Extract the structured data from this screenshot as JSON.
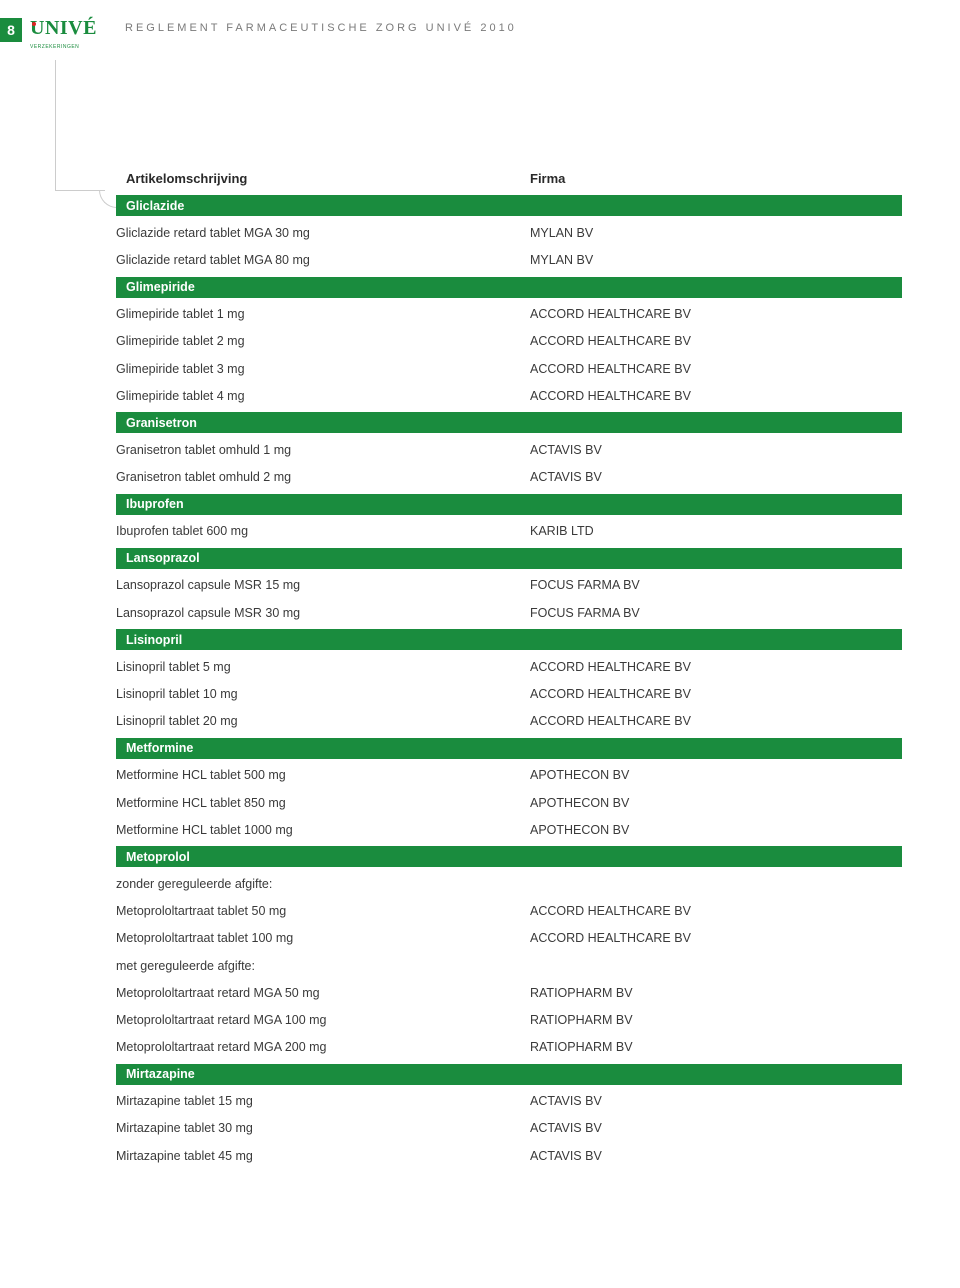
{
  "page_number": "8",
  "logo": {
    "main": "UNIVÉ",
    "sub": "VERZEKERINGEN"
  },
  "header_title": "REGLEMENT FARMACEUTISCHE ZORG UNIVÉ 2010",
  "colors": {
    "brand_green": "#1a8c3e",
    "text": "#3a3a3a",
    "rule": "#cccccc",
    "grey": "#7a7a7a"
  },
  "table": {
    "columns": [
      "Artikelomschrijving",
      "Firma"
    ],
    "rows": [
      {
        "type": "section",
        "label": "Gliclazide"
      },
      {
        "c1": "Gliclazide retard tablet MGA 30 mg",
        "c2": "MYLAN BV"
      },
      {
        "c1": "Gliclazide retard tablet MGA 80 mg",
        "c2": "MYLAN BV"
      },
      {
        "type": "section",
        "label": "Glimepiride"
      },
      {
        "c1": "Glimepiride tablet 1 mg",
        "c2": "ACCORD HEALTHCARE BV"
      },
      {
        "c1": "Glimepiride tablet 2 mg",
        "c2": "ACCORD HEALTHCARE BV"
      },
      {
        "c1": "Glimepiride tablet 3 mg",
        "c2": "ACCORD HEALTHCARE BV"
      },
      {
        "c1": "Glimepiride tablet 4 mg",
        "c2": "ACCORD HEALTHCARE BV"
      },
      {
        "type": "section",
        "label": "Granisetron"
      },
      {
        "c1": "Granisetron tablet omhuld 1 mg",
        "c2": "ACTAVIS BV"
      },
      {
        "c1": "Granisetron tablet omhuld 2 mg",
        "c2": "ACTAVIS BV"
      },
      {
        "type": "section",
        "label": "Ibuprofen"
      },
      {
        "c1": "Ibuprofen tablet 600 mg",
        "c2": "KARIB LTD"
      },
      {
        "type": "section",
        "label": "Lansoprazol"
      },
      {
        "c1": "Lansoprazol capsule MSR 15 mg",
        "c2": "FOCUS FARMA BV"
      },
      {
        "c1": "Lansoprazol capsule MSR 30 mg",
        "c2": "FOCUS FARMA BV"
      },
      {
        "type": "section",
        "label": "Lisinopril"
      },
      {
        "c1": "Lisinopril tablet 5 mg",
        "c2": "ACCORD HEALTHCARE BV"
      },
      {
        "c1": "Lisinopril tablet 10 mg",
        "c2": "ACCORD HEALTHCARE BV"
      },
      {
        "c1": "Lisinopril tablet 20 mg",
        "c2": "ACCORD HEALTHCARE BV"
      },
      {
        "type": "section",
        "label": "Metformine"
      },
      {
        "c1": "Metformine HCL tablet 500 mg",
        "c2": "APOTHECON BV"
      },
      {
        "c1": "Metformine HCL tablet 850 mg",
        "c2": "APOTHECON BV"
      },
      {
        "c1": "Metformine HCL tablet 1000 mg",
        "c2": "APOTHECON BV"
      },
      {
        "type": "section",
        "label": "Metoprolol"
      },
      {
        "type": "note",
        "c1": "zonder gereguleerde afgifte:",
        "c2": ""
      },
      {
        "c1": "Metoprololtartraat tablet 50 mg",
        "c2": "ACCORD HEALTHCARE BV"
      },
      {
        "c1": "Metoprololtartraat tablet 100 mg",
        "c2": "ACCORD HEALTHCARE BV"
      },
      {
        "type": "note",
        "c1": "met gereguleerde afgifte:",
        "c2": ""
      },
      {
        "c1": "Metoprololtartraat retard  MGA 50 mg",
        "c2": "RATIOPHARM BV"
      },
      {
        "c1": "Metoprololtartraat retard  MGA 100 mg",
        "c2": "RATIOPHARM BV"
      },
      {
        "c1": "Metoprololtartraat retard  MGA 200 mg",
        "c2": "RATIOPHARM BV"
      },
      {
        "type": "section",
        "label": "Mirtazapine"
      },
      {
        "c1": "Mirtazapine tablet 15 mg",
        "c2": "ACTAVIS BV"
      },
      {
        "c1": "Mirtazapine tablet 30 mg",
        "c2": "ACTAVIS BV"
      },
      {
        "c1": "Mirtazapine tablet 45 mg",
        "c2": "ACTAVIS BV"
      }
    ]
  }
}
